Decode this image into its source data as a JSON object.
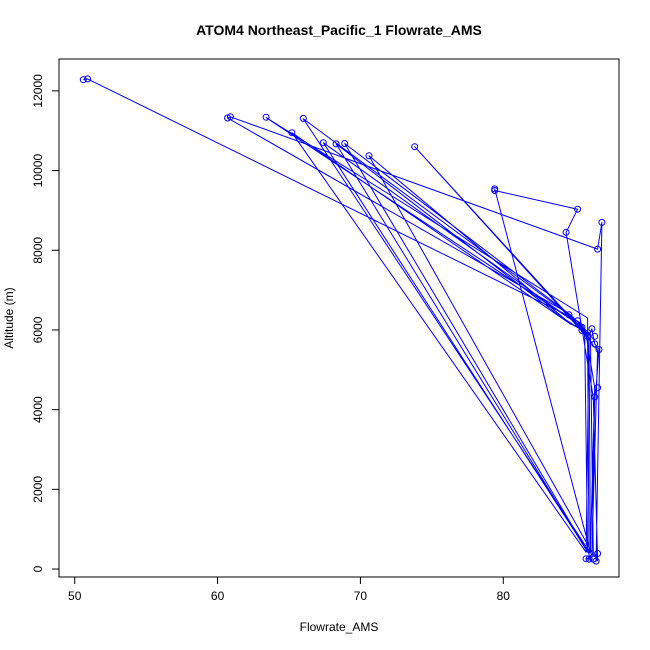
{
  "chart_data": {
    "type": "line",
    "title": "ATOM4 Northeast_Pacific_1 Flowrate_AMS",
    "xlabel": "Flowrate_AMS",
    "ylabel": "Altitude (m)",
    "xlim": [
      48.9,
      88.1
    ],
    "ylim": [
      -200,
      12800
    ],
    "xticks": [
      50,
      60,
      70,
      80
    ],
    "yticks": [
      0,
      2000,
      4000,
      6000,
      8000,
      10000,
      12000
    ],
    "grid": false,
    "legend": "none",
    "colors": {
      "series": "#0000ff",
      "axis": "#000000",
      "background": "#ffffff"
    },
    "series": [
      {
        "points": [
          [
            50.6,
            12280
          ],
          [
            50.9,
            12300
          ],
          [
            84.6,
            6350
          ],
          [
            85.3,
            6200
          ],
          [
            85.6,
            6000
          ],
          [
            85.7,
            5980
          ],
          [
            86.0,
            5860
          ],
          [
            86.2,
            6030
          ],
          [
            86.3,
            5820
          ],
          [
            86.4,
            5650
          ],
          [
            86.7,
            5520
          ],
          [
            86.5,
            4550
          ],
          [
            86.4,
            4310
          ],
          [
            86.2,
            220
          ],
          [
            86.1,
            250
          ],
          [
            85.8,
            250
          ],
          [
            86.6,
            380
          ],
          [
            86.5,
            190
          ],
          [
            86.9,
            8700
          ],
          [
            86.6,
            8030
          ],
          [
            60.9,
            11350
          ],
          [
            60.7,
            11320
          ],
          [
            84.4,
            6450
          ],
          [
            85.6,
            6100
          ],
          [
            85.5,
            5950
          ],
          [
            86.0,
            5800
          ],
          [
            86.3,
            5600
          ],
          [
            86.6,
            5500
          ],
          [
            86.2,
            380
          ],
          [
            86.0,
            300
          ],
          [
            85.9,
            6300
          ],
          [
            63.4,
            11330
          ],
          [
            84.8,
            6250
          ],
          [
            85.5,
            6000
          ],
          [
            86.0,
            5900
          ],
          [
            85.8,
            420
          ],
          [
            65.2,
            10950
          ],
          [
            84.7,
            6150
          ],
          [
            85.3,
            6080
          ],
          [
            85.8,
            5880
          ],
          [
            86.4,
            4550
          ],
          [
            86.1,
            400
          ],
          [
            66.0,
            11300
          ],
          [
            84.9,
            6300
          ],
          [
            85.5,
            5950
          ],
          [
            85.9,
            5800
          ],
          [
            86.0,
            390
          ],
          [
            67.4,
            10700
          ],
          [
            84.6,
            6300
          ],
          [
            85.4,
            6100
          ],
          [
            85.7,
            5850
          ],
          [
            85.9,
            420
          ],
          [
            68.3,
            10670
          ],
          [
            84.5,
            6200
          ],
          [
            85.5,
            6000
          ],
          [
            85.9,
            5880
          ],
          [
            86.0,
            380
          ],
          [
            68.9,
            10680
          ],
          [
            84.8,
            6350
          ],
          [
            85.6,
            6050
          ],
          [
            86.1,
            5900
          ],
          [
            86.3,
            360
          ],
          [
            70.6,
            10370
          ],
          [
            84.4,
            6250
          ],
          [
            85.5,
            6000
          ],
          [
            85.8,
            5850
          ],
          [
            73.8,
            10600
          ],
          [
            84.7,
            6320
          ],
          [
            85.6,
            6020
          ],
          [
            86.0,
            5880
          ],
          [
            86.1,
            420
          ],
          [
            79.4,
            9540
          ],
          [
            79.4,
            9500
          ],
          [
            85.2,
            9030
          ],
          [
            84.4,
            8450
          ],
          [
            86.3,
            4300
          ],
          [
            86.6,
            200
          ]
        ]
      }
    ],
    "markers": [
      [
        50.6,
        12280
      ],
      [
        50.9,
        12300
      ],
      [
        60.7,
        11320
      ],
      [
        60.9,
        11350
      ],
      [
        63.4,
        11340
      ],
      [
        65.2,
        10950
      ],
      [
        66.0,
        11310
      ],
      [
        67.4,
        10700
      ],
      [
        68.3,
        10670
      ],
      [
        68.9,
        10680
      ],
      [
        70.6,
        10370
      ],
      [
        73.8,
        10600
      ],
      [
        79.4,
        9540
      ],
      [
        79.4,
        9500
      ],
      [
        85.2,
        9030
      ],
      [
        86.9,
        8700
      ],
      [
        84.4,
        8450
      ],
      [
        86.6,
        8030
      ],
      [
        84.6,
        6380
      ],
      [
        85.2,
        6230
      ],
      [
        85.5,
        6070
      ],
      [
        85.5,
        5990
      ],
      [
        85.9,
        5840
      ],
      [
        86.2,
        6030
      ],
      [
        86.4,
        5840
      ],
      [
        86.4,
        5650
      ],
      [
        86.7,
        5510
      ],
      [
        86.6,
        4550
      ],
      [
        86.4,
        4320
      ],
      [
        86.6,
        390
      ],
      [
        85.8,
        260
      ],
      [
        86.0,
        250
      ],
      [
        86.3,
        250
      ],
      [
        86.5,
        200
      ]
    ]
  }
}
